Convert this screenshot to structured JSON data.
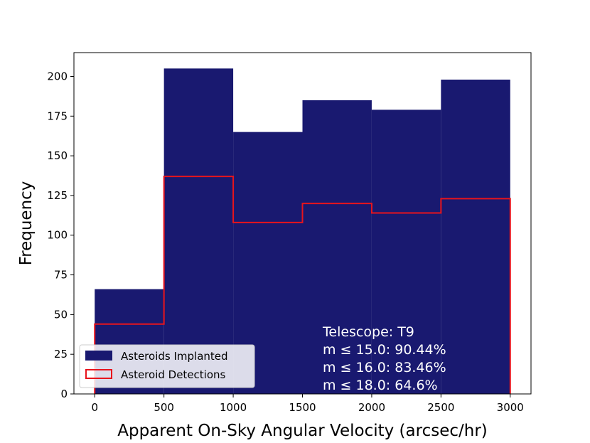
{
  "chart_data": {
    "type": "bar",
    "title": "",
    "xlabel": "Apparent On-Sky Angular Velocity (arcsec/hr)",
    "ylabel": "Frequency",
    "xlim": [
      -150,
      3150
    ],
    "ylim": [
      0,
      215
    ],
    "x_ticks": [
      0,
      500,
      1000,
      1500,
      2000,
      2500,
      3000
    ],
    "y_ticks": [
      0,
      25,
      50,
      75,
      100,
      125,
      150,
      175,
      200
    ],
    "bin_edges": [
      0,
      500,
      1000,
      1500,
      2000,
      2500,
      3000
    ],
    "grid": false,
    "legend_position": "lower-left",
    "series": [
      {
        "name": "Asteroids Implanted",
        "style": "filled",
        "color": "#191970",
        "values": [
          66,
          205,
          165,
          185,
          179,
          198
        ]
      },
      {
        "name": "Asteroid Detections",
        "style": "step",
        "color": "#e8141c",
        "values": [
          44,
          137,
          108,
          120,
          114,
          123
        ]
      }
    ],
    "annotation": {
      "lines": [
        "Telescope: T9",
        "m ≤ 15.0: 90.44%",
        "m ≤ 16.0: 83.46%",
        "m ≤ 18.0: 64.6%"
      ],
      "color": "#ffffff"
    }
  }
}
